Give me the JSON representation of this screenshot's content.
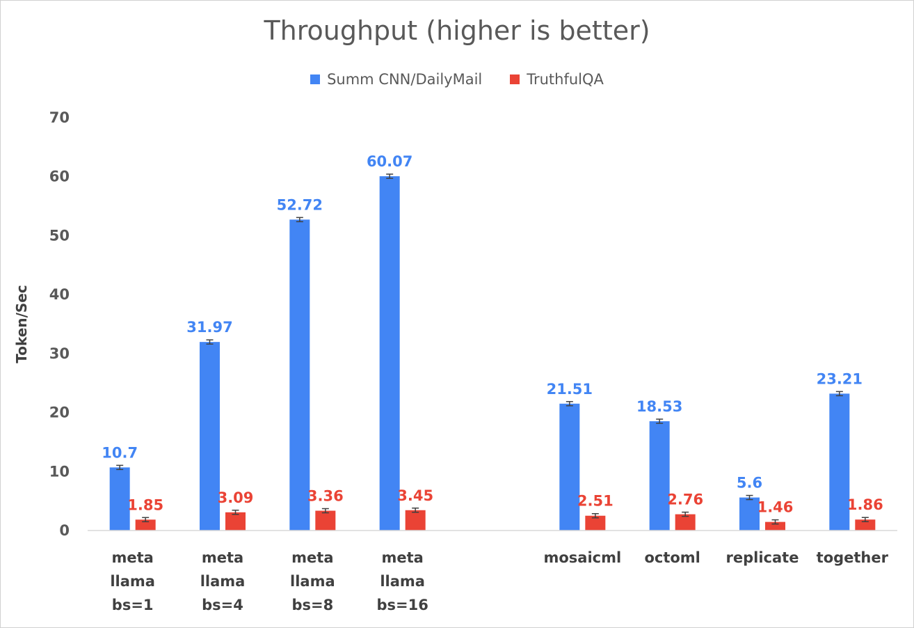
{
  "chart_data": {
    "type": "bar",
    "title": "Throughput (higher is better)",
    "ylabel": "Token/Sec",
    "xlabel": "",
    "ylim": [
      0,
      70
    ],
    "yticks": [
      0,
      10,
      20,
      30,
      40,
      50,
      60,
      70
    ],
    "grid": false,
    "legend": "top-center",
    "categories": [
      [
        "meta",
        "llama",
        "bs=1"
      ],
      [
        "meta",
        "llama",
        "bs=4"
      ],
      [
        "meta",
        "llama",
        "bs=8"
      ],
      [
        "meta",
        "llama",
        "bs=16"
      ],
      [
        ""
      ],
      [
        "mosaicml"
      ],
      [
        "octoml"
      ],
      [
        "replicate"
      ],
      [
        "together"
      ]
    ],
    "series": [
      {
        "name": "Summ CNN/DailyMail",
        "color": "#4285f4",
        "values": [
          10.7,
          31.97,
          52.72,
          60.07,
          null,
          21.51,
          18.53,
          5.6,
          23.21
        ],
        "labels": [
          "10.7",
          "31.97",
          "52.72",
          "60.07",
          "",
          "21.51",
          "18.53",
          "5.6",
          "23.21"
        ]
      },
      {
        "name": "TruthfulQA",
        "color": "#ea4335",
        "values": [
          1.85,
          3.09,
          3.36,
          3.45,
          null,
          2.51,
          2.76,
          1.46,
          1.86
        ],
        "labels": [
          "1.85",
          "3.09",
          "3.36",
          "3.45",
          "",
          "2.51",
          "2.76",
          "1.46",
          "1.86"
        ]
      }
    ]
  }
}
